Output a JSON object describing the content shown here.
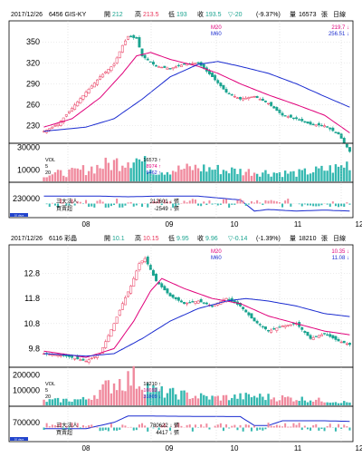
{
  "colors": {
    "bg": "#ffffff",
    "frame": "#000000",
    "header_bg": "#ffffff",
    "up": "#e8345a",
    "down": "#19a38f",
    "ma20": "#e0007a",
    "ma60": "#1a2bd0",
    "vol_up": "#f08a9e",
    "vol_down": "#35b8b0",
    "inst": "#1a2bd0",
    "inst_up": "#f08a9e",
    "inst_down": "#35b8b0",
    "dark": "#000000",
    "blue_tag": "#2244cc"
  },
  "panels": [
    {
      "header": {
        "date": "2017/12/26",
        "code": "6456 GIS-KY",
        "open_label": "開",
        "open": "212",
        "high_label": "高",
        "high": "213.5",
        "low_label": "低",
        "low": "193",
        "close_label": "收",
        "close": "193.5",
        "change": "▽-20",
        "pct": "(-9.37%)",
        "vol_label": "量",
        "vol": "16573",
        "vol_unit": "張",
        "period": "日線"
      },
      "legend": {
        "ma20_label": "M20",
        "ma20_val": "219.7 ↓",
        "ma60_label": "M60",
        "ma60_val": "256.51 ↓"
      },
      "price_ticks": [
        "350",
        "320",
        "290",
        "260",
        "230"
      ],
      "vol_ticks": [
        "30000",
        "10000"
      ],
      "vol_legend": {
        "vol_label": "VOL",
        "l5": "5",
        "l20": "20",
        "v1": "16573 ↑",
        "v2": "8974 ↑",
        "v3": "9462 ↑"
      },
      "inst_ticks": [
        "230000"
      ],
      "inst_legend": {
        "l1": "三大法人",
        "l2": "買賣超",
        "v1": "212601 ↓ 張",
        "v2": "-2549 ↓ 張"
      },
      "months": [
        "08",
        "09",
        "10",
        "11",
        "12"
      ],
      "zoom": "10 days"
    },
    {
      "header": {
        "date": "2017/12/26",
        "code": "6116 彩晶",
        "open_label": "開",
        "open": "10.1",
        "high_label": "高",
        "high": "10.15",
        "low_label": "低",
        "low": "9.95",
        "close_label": "收",
        "close": "9.96",
        "change": "▽-0.14",
        "pct": "(-1.39%)",
        "vol_label": "量",
        "vol": "18210",
        "vol_unit": "張",
        "period": "日線"
      },
      "legend": {
        "ma20_label": "M20",
        "ma20_val": "10.35 ↓",
        "ma60_label": "M60",
        "ma60_val": "11.08 ↓"
      },
      "price_ticks": [
        "12.8",
        "11.8",
        "10.8",
        "9.8"
      ],
      "vol_ticks": [
        "200000",
        "100000"
      ],
      "vol_legend": {
        "vol_label": "VOL",
        "l5": "5",
        "l20": "20",
        "v1": "18210 ↑",
        "v2": "16692 ↓",
        "v3": "31809 ↓"
      },
      "inst_ticks": [
        "700000"
      ],
      "inst_legend": {
        "l1": "三大法人",
        "l2": "買賣超",
        "v1": "780622 ↓ 張",
        "v2": "4417 ↓ 張"
      },
      "months": [
        "08",
        "09",
        "10",
        "11",
        "12"
      ],
      "zoom": "10 days"
    }
  ],
  "chart_data": [
    {
      "type": "candlestick",
      "title": "6456 GIS-KY",
      "ylim": [
        210,
        375
      ],
      "anchors": [
        [
          0,
          222
        ],
        [
          5,
          232
        ],
        [
          10,
          255
        ],
        [
          15,
          278
        ],
        [
          20,
          300
        ],
        [
          25,
          318
        ],
        [
          28,
          345
        ],
        [
          30,
          358
        ],
        [
          33,
          355
        ],
        [
          35,
          330
        ],
        [
          40,
          315
        ],
        [
          45,
          312
        ],
        [
          50,
          318
        ],
        [
          55,
          320
        ],
        [
          60,
          300
        ],
        [
          65,
          278
        ],
        [
          70,
          268
        ],
        [
          75,
          272
        ],
        [
          80,
          262
        ],
        [
          85,
          245
        ],
        [
          90,
          240
        ],
        [
          95,
          232
        ],
        [
          100,
          230
        ],
        [
          105,
          218
        ],
        [
          109,
          193
        ]
      ],
      "ma20_anchors": [
        [
          0,
          228
        ],
        [
          10,
          240
        ],
        [
          20,
          270
        ],
        [
          28,
          305
        ],
        [
          33,
          330
        ],
        [
          38,
          335
        ],
        [
          45,
          325
        ],
        [
          55,
          315
        ],
        [
          62,
          305
        ],
        [
          70,
          290
        ],
        [
          80,
          274
        ],
        [
          90,
          260
        ],
        [
          100,
          245
        ],
        [
          109,
          219.7
        ]
      ],
      "ma60_anchors": [
        [
          0,
          222
        ],
        [
          15,
          228
        ],
        [
          25,
          240
        ],
        [
          35,
          268
        ],
        [
          45,
          300
        ],
        [
          55,
          318
        ],
        [
          62,
          322
        ],
        [
          70,
          315
        ],
        [
          80,
          305
        ],
        [
          90,
          290
        ],
        [
          100,
          272
        ],
        [
          109,
          256.5
        ]
      ],
      "vol_max": 32000,
      "vol_anchors": [
        [
          0,
          6000
        ],
        [
          10,
          8000
        ],
        [
          25,
          16000
        ],
        [
          32,
          22000
        ],
        [
          40,
          9000
        ],
        [
          55,
          12000
        ],
        [
          70,
          9000
        ],
        [
          90,
          7000
        ],
        [
          105,
          12000
        ],
        [
          109,
          16573
        ]
      ],
      "inst_anchors": [
        [
          0,
          0.62
        ],
        [
          20,
          0.62
        ],
        [
          30,
          0.6
        ],
        [
          40,
          0.62
        ],
        [
          55,
          0.62
        ],
        [
          70,
          0.5
        ],
        [
          75,
          0.15
        ],
        [
          80,
          0.2
        ],
        [
          90,
          0.15
        ],
        [
          100,
          0.18
        ],
        [
          109,
          0.15
        ]
      ]
    },
    {
      "type": "candlestick",
      "title": "6116 彩晶",
      "ylim": [
        9.2,
        13.8
      ],
      "anchors": [
        [
          0,
          9.6
        ],
        [
          8,
          9.5
        ],
        [
          15,
          9.3
        ],
        [
          20,
          9.6
        ],
        [
          25,
          10.8
        ],
        [
          28,
          11.6
        ],
        [
          31,
          12.3
        ],
        [
          34,
          13.2
        ],
        [
          36,
          13.4
        ],
        [
          40,
          12.5
        ],
        [
          45,
          11.9
        ],
        [
          50,
          11.6
        ],
        [
          55,
          11.7
        ],
        [
          60,
          11.5
        ],
        [
          65,
          11.8
        ],
        [
          70,
          11.5
        ],
        [
          75,
          10.9
        ],
        [
          80,
          10.5
        ],
        [
          85,
          10.7
        ],
        [
          90,
          10.8
        ],
        [
          95,
          10.2
        ],
        [
          100,
          10.4
        ],
        [
          105,
          10.1
        ],
        [
          109,
          9.96
        ]
      ],
      "ma20_anchors": [
        [
          0,
          9.7
        ],
        [
          15,
          9.45
        ],
        [
          25,
          9.8
        ],
        [
          32,
          10.9
        ],
        [
          38,
          12.1
        ],
        [
          42,
          12.6
        ],
        [
          50,
          12.2
        ],
        [
          60,
          11.8
        ],
        [
          70,
          11.6
        ],
        [
          80,
          11.1
        ],
        [
          90,
          10.8
        ],
        [
          100,
          10.5
        ],
        [
          109,
          10.35
        ]
      ],
      "ma60_anchors": [
        [
          0,
          9.6
        ],
        [
          15,
          9.5
        ],
        [
          25,
          9.6
        ],
        [
          35,
          10.2
        ],
        [
          45,
          10.9
        ],
        [
          55,
          11.4
        ],
        [
          65,
          11.7
        ],
        [
          72,
          11.8
        ],
        [
          80,
          11.7
        ],
        [
          90,
          11.5
        ],
        [
          100,
          11.2
        ],
        [
          109,
          11.08
        ]
      ],
      "vol_max": 240000,
      "vol_anchors": [
        [
          0,
          30000
        ],
        [
          15,
          40000
        ],
        [
          25,
          150000
        ],
        [
          32,
          180000
        ],
        [
          40,
          90000
        ],
        [
          50,
          70000
        ],
        [
          60,
          50000
        ],
        [
          75,
          60000
        ],
        [
          90,
          45000
        ],
        [
          105,
          25000
        ],
        [
          109,
          18210
        ]
      ],
      "inst_anchors": [
        [
          0,
          0.35
        ],
        [
          15,
          0.35
        ],
        [
          25,
          0.55
        ],
        [
          30,
          0.75
        ],
        [
          35,
          0.75
        ],
        [
          50,
          0.74
        ],
        [
          70,
          0.73
        ],
        [
          75,
          0.45
        ],
        [
          80,
          0.45
        ],
        [
          85,
          0.6
        ],
        [
          100,
          0.6
        ],
        [
          109,
          0.58
        ]
      ]
    }
  ]
}
